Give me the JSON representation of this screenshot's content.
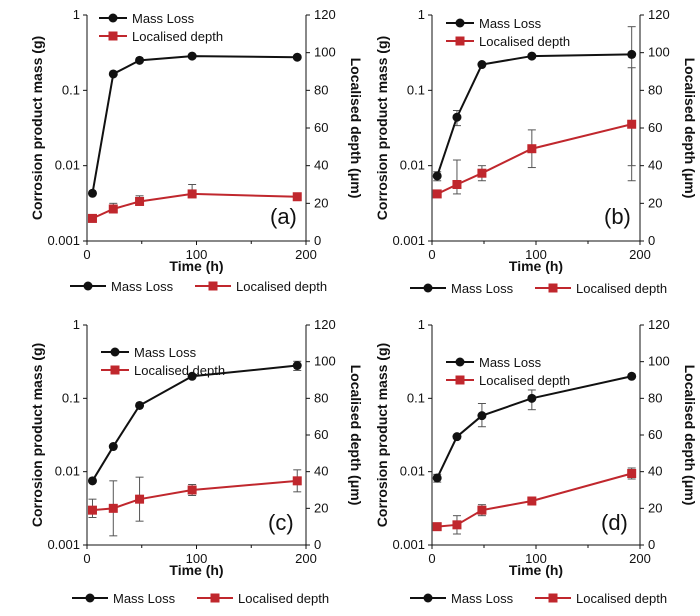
{
  "colors": {
    "mass": "#111111",
    "depth": "#c0272d",
    "axis": "#111111",
    "errorbar": "#555555"
  },
  "chart_data": [
    {
      "type": "line",
      "panel_label": "(a)",
      "xlabel": "Time (h)",
      "ylabel_left": "Corrosion product mass (g)",
      "ylabel_right": "Localised depth (μm)",
      "y_scale_left": "log",
      "ylim_left": [
        0.001,
        1
      ],
      "ylim_right": [
        0,
        120
      ],
      "xlim": [
        0,
        200
      ],
      "x_ticks": [
        "0",
        "100",
        "200"
      ],
      "y_ticks_left": [
        "0.001",
        "0.01",
        "0.1",
        "1"
      ],
      "y_ticks_right": [
        "0",
        "20",
        "40",
        "60",
        "80",
        "100",
        "120"
      ],
      "legend_inner": [
        "Mass Loss",
        "Localised depth"
      ],
      "legend_bottom": [
        "Mass Loss",
        "Localised depth"
      ],
      "series": [
        {
          "name": "Mass Loss",
          "axis": "left",
          "marker": "circle",
          "x": [
            5,
            24,
            48,
            96,
            192
          ],
          "y": [
            0.0043,
            0.165,
            0.25,
            0.285,
            0.275
          ],
          "err_low": [
            0,
            0,
            0,
            0,
            0
          ],
          "err_high": [
            0,
            0,
            0,
            0,
            0
          ]
        },
        {
          "name": "Localised depth",
          "axis": "right",
          "marker": "square",
          "x": [
            5,
            24,
            48,
            96,
            192
          ],
          "y": [
            12,
            17,
            21,
            25,
            23.5
          ],
          "err_low": [
            2,
            2,
            2,
            2,
            0
          ],
          "err_high": [
            2,
            3,
            3,
            5,
            0
          ]
        }
      ]
    },
    {
      "type": "line",
      "panel_label": "(b)",
      "xlabel": "Time (h)",
      "ylabel_left": "Corrosion product mass (g)",
      "ylabel_right": "Localised depth (μm)",
      "y_scale_left": "log",
      "ylim_left": [
        0.001,
        1
      ],
      "ylim_right": [
        0,
        120
      ],
      "xlim": [
        0,
        200
      ],
      "x_ticks": [
        "0",
        "100",
        "200"
      ],
      "y_ticks_left": [
        "0.001",
        "0.01",
        "0.1",
        "1"
      ],
      "y_ticks_right": [
        "0",
        "20",
        "40",
        "60",
        "80",
        "100",
        "120"
      ],
      "legend_inner": [
        "Mass Loss",
        "Localised depth"
      ],
      "legend_bottom": [
        "Mass Loss",
        "Localised depth"
      ],
      "series": [
        {
          "name": "Mass Loss",
          "axis": "left",
          "marker": "circle",
          "x": [
            5,
            24,
            48,
            96,
            192
          ],
          "y": [
            0.0073,
            0.044,
            0.22,
            0.285,
            0.3
          ],
          "err_low": [
            0.001,
            0.01,
            0,
            0,
            0.29
          ],
          "err_high": [
            0.001,
            0.01,
            0,
            0,
            0.4
          ]
        },
        {
          "name": "Localised depth",
          "axis": "right",
          "marker": "square",
          "x": [
            5,
            24,
            48,
            96,
            192
          ],
          "y": [
            25,
            30,
            36,
            49,
            62
          ],
          "err_low": [
            0,
            5,
            4,
            10,
            30
          ],
          "err_high": [
            0,
            13,
            4,
            10,
            30
          ]
        }
      ]
    },
    {
      "type": "line",
      "panel_label": "(c)",
      "xlabel": "Time (h)",
      "ylabel_left": "Corrosion product mass (g)",
      "ylabel_right": "Localised depth (μm)",
      "y_scale_left": "log",
      "ylim_left": [
        0.001,
        1
      ],
      "ylim_right": [
        0,
        120
      ],
      "xlim": [
        0,
        200
      ],
      "x_ticks": [
        "0",
        "100",
        "200"
      ],
      "y_ticks_left": [
        "0.001",
        "0.01",
        "0.1",
        "1"
      ],
      "y_ticks_right": [
        "0",
        "20",
        "40",
        "60",
        "80",
        "100",
        "120"
      ],
      "legend_inner": [
        "Mass Loss",
        "Localised depth"
      ],
      "legend_bottom": [
        "Mass Loss",
        "Localised depth"
      ],
      "series": [
        {
          "name": "Mass Loss",
          "axis": "left",
          "marker": "circle",
          "x": [
            5,
            24,
            48,
            96,
            192
          ],
          "y": [
            0.0075,
            0.022,
            0.08,
            0.2,
            0.28
          ],
          "err_low": [
            0,
            0,
            0,
            0,
            0.04
          ],
          "err_high": [
            0,
            0,
            0,
            0,
            0.04
          ]
        },
        {
          "name": "Localised depth",
          "axis": "right",
          "marker": "square",
          "x": [
            5,
            24,
            48,
            96,
            192
          ],
          "y": [
            19,
            20,
            25,
            30,
            35
          ],
          "err_low": [
            4,
            15,
            12,
            3,
            6
          ],
          "err_high": [
            6,
            15,
            12,
            3,
            6
          ]
        }
      ]
    },
    {
      "type": "line",
      "panel_label": "(d)",
      "xlabel": "Time (h)",
      "ylabel_left": "Corrosion product mass (g)",
      "ylabel_right": "Localised depth (μm)",
      "y_scale_left": "log",
      "ylim_left": [
        0.001,
        1
      ],
      "ylim_right": [
        0,
        120
      ],
      "xlim": [
        0,
        200
      ],
      "x_ticks": [
        "0",
        "100",
        "200"
      ],
      "y_ticks_left": [
        "0.001",
        "0.01",
        "0.1",
        "1"
      ],
      "y_ticks_right": [
        "0",
        "20",
        "40",
        "60",
        "80",
        "100",
        "120"
      ],
      "legend_inner": [
        "Mass Loss",
        "Localised depth"
      ],
      "legend_bottom": [
        "Mass Loss",
        "Localised depth"
      ],
      "series": [
        {
          "name": "Mass Loss",
          "axis": "left",
          "marker": "circle",
          "x": [
            5,
            24,
            48,
            96,
            192
          ],
          "y": [
            0.0082,
            0.03,
            0.058,
            0.1,
            0.2
          ],
          "err_low": [
            0.001,
            0,
            0.017,
            0.03,
            0
          ],
          "err_high": [
            0.001,
            0,
            0.027,
            0.03,
            0
          ]
        },
        {
          "name": "Localised depth",
          "axis": "right",
          "marker": "square",
          "x": [
            5,
            24,
            48,
            96,
            192
          ],
          "y": [
            10,
            11,
            19,
            24,
            39
          ],
          "err_low": [
            2,
            5,
            3,
            0,
            3
          ],
          "err_high": [
            2,
            5,
            3,
            0,
            3
          ]
        }
      ]
    }
  ]
}
